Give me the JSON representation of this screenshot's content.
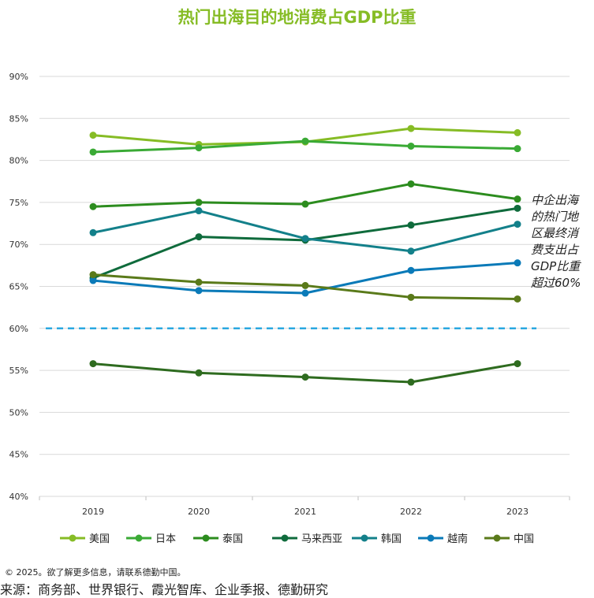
{
  "title": "热门出海目的地消费占GDP比重",
  "chart_data": {
    "type": "line",
    "categories": [
      "2019",
      "2020",
      "2021",
      "2022",
      "2023"
    ],
    "y_ticks": [
      "40%",
      "45%",
      "50%",
      "55%",
      "60%",
      "65%",
      "70%",
      "75%",
      "80%",
      "85%",
      "90%"
    ],
    "ylim": [
      40,
      90
    ],
    "grid": true,
    "legend_position": "bottom",
    "series": [
      {
        "name": "美国",
        "color": "#86bc25",
        "values": [
          83.0,
          81.9,
          82.2,
          83.8,
          83.3
        ]
      },
      {
        "name": "日本",
        "color": "#3aaa35",
        "values": [
          81.0,
          81.5,
          82.3,
          81.7,
          81.4
        ]
      },
      {
        "name": "泰国",
        "color": "#2c8c1e",
        "values": [
          74.5,
          75.0,
          74.8,
          77.2,
          75.4
        ]
      },
      {
        "name": "马来西亚",
        "color": "#0f6b3c",
        "values": [
          66.0,
          70.9,
          70.5,
          72.3,
          74.3
        ]
      },
      {
        "name": "韩国",
        "color": "#13808a",
        "values": [
          71.4,
          74.0,
          70.7,
          69.2,
          72.4
        ]
      },
      {
        "name": "越南",
        "color": "#0a7ab8",
        "values": [
          65.7,
          64.5,
          64.2,
          66.9,
          67.8
        ]
      },
      {
        "name": "中国",
        "color": "#5a7a1a",
        "values": [
          66.4,
          65.5,
          65.1,
          63.7,
          63.5
        ]
      }
    ],
    "extra_series_line": {
      "name": "",
      "color": "#2e6b1f",
      "values": [
        55.8,
        54.7,
        54.2,
        53.6,
        55.8
      ]
    },
    "reference_line": {
      "value": 60,
      "color": "#2aa8e0"
    },
    "annotation": [
      "中企出海",
      "的热门地",
      "区最终消",
      "费支出占",
      "GDP比重",
      "超过60%"
    ]
  },
  "footer": {
    "copyright": "© 2025。欲了解更多信息，请联系德勤中国。",
    "source": "来源：商务部、世界银行、霞光智库、企业季报、德勤研究"
  }
}
